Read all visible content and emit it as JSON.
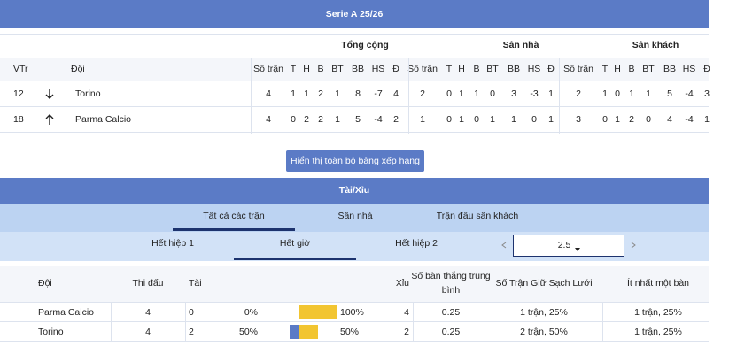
{
  "header": {
    "title": "Serie A 25/26"
  },
  "standings": {
    "groups": [
      "Tổng cộng",
      "Sân nhà",
      "Sân khách"
    ],
    "columns": [
      "VTr",
      "Đội"
    ],
    "stat_columns": [
      "Số trận",
      "T",
      "H",
      "B",
      "BT",
      "BB",
      "HS",
      "Đ"
    ],
    "rows": [
      {
        "rank": 12,
        "team": "Torino",
        "total": [
          4,
          1,
          1,
          2,
          1,
          8,
          -7,
          4
        ],
        "home": [
          2,
          0,
          1,
          1,
          0,
          3,
          -3,
          1
        ],
        "away": [
          2,
          1,
          0,
          1,
          1,
          5,
          -4,
          3
        ]
      },
      {
        "rank": 18,
        "team": "Parma Calcio",
        "total": [
          4,
          0,
          2,
          2,
          1,
          5,
          -4,
          2
        ],
        "home": [
          1,
          0,
          1,
          0,
          1,
          1,
          0,
          1
        ],
        "away": [
          3,
          0,
          1,
          2,
          0,
          4,
          -4,
          1
        ]
      }
    ]
  },
  "button": "Hiển thị toàn bộ bảng xếp hạng",
  "over_under": {
    "title": "Tài/Xỉu",
    "tabs": [
      "Tất cả các trận",
      "Sân nhà",
      "Trận đấu sân khách"
    ],
    "active_tab": 0,
    "periods": [
      "Hết hiệp 1",
      "Hết giờ",
      "Hết hiệp 2"
    ],
    "active_period": 1,
    "line": "2.5",
    "columns": [
      "Đội",
      "Thi đấu",
      "Tài",
      "Xỉu",
      "Số bàn thắng trung bình",
      "Số Trận Giữ Sạch Lưới",
      "Ít nhất một bàn"
    ],
    "rows": [
      {
        "team": "Parma Calcio",
        "played": 4,
        "over": 0,
        "over_pct": {
          "value": 0,
          "label": "0%"
        },
        "under_pct": {
          "value": 100,
          "label": "100%"
        },
        "under": 4,
        "avg": 0.25,
        "clean_sheets": "1 trận, 25%",
        "at_least_one": "1 trận, 25%"
      },
      {
        "team": "Torino",
        "played": 4,
        "over": 2,
        "over_pct": {
          "value": 50,
          "label": "50%"
        },
        "under_pct": {
          "value": 50,
          "label": "50%"
        },
        "under": 2,
        "avg": 0.25,
        "clean_sheets": "2 trận, 50%",
        "at_least_one": "1 trận, 25%"
      }
    ]
  }
}
